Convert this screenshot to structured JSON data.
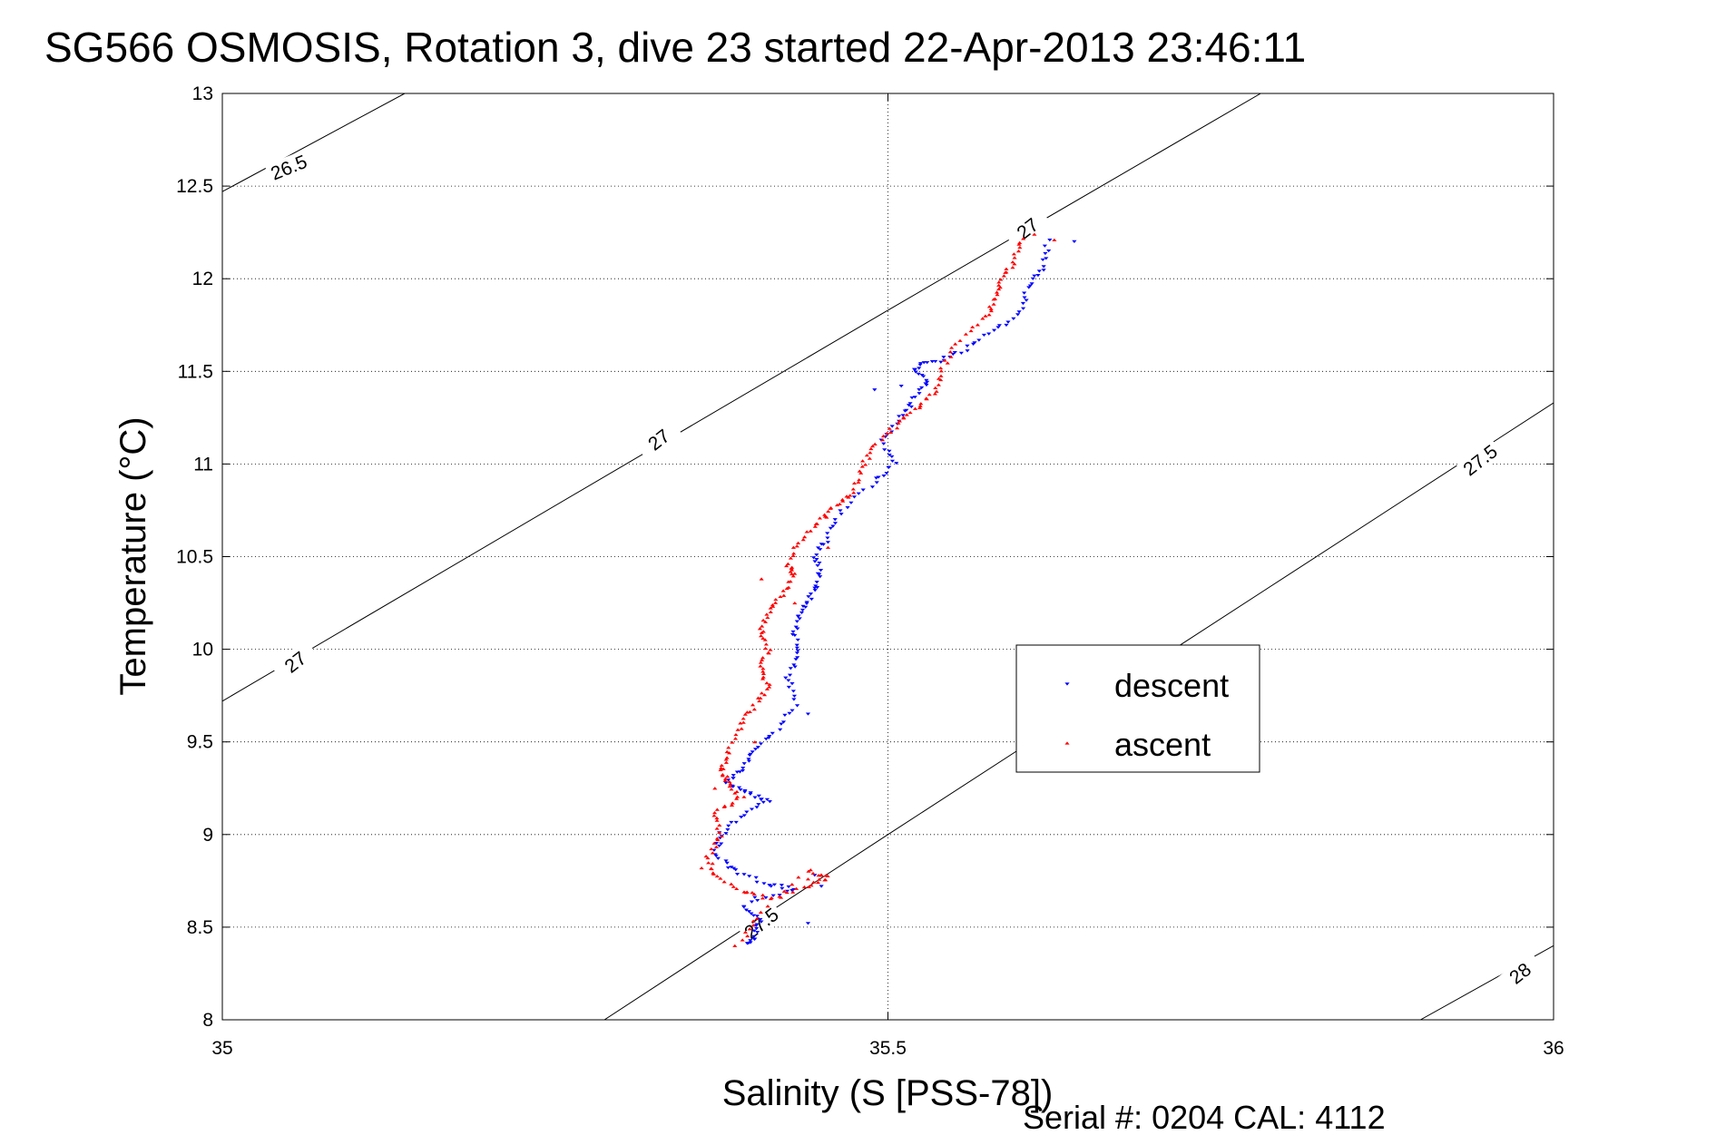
{
  "title": "SG566 OSMOSIS, Rotation 3, dive 23 started 22-Apr-2013 23:46:11",
  "footer": "Serial #: 0204  CAL: 4112",
  "chart_data": {
    "type": "scatter",
    "title": "SG566 OSMOSIS, Rotation 3, dive 23 started 22-Apr-2013 23:46:11",
    "xlabel": "Salinity (S [PSS-78])",
    "ylabel": "Temperature (°C)",
    "xlim": [
      35,
      36
    ],
    "ylim": [
      8,
      13
    ],
    "xticks": [
      35,
      35.5,
      36
    ],
    "xtick_labels": [
      "35",
      "35.5",
      "36"
    ],
    "yticks": [
      8,
      8.5,
      9,
      9.5,
      10,
      10.5,
      11,
      11.5,
      12,
      12.5,
      13
    ],
    "ytick_labels": [
      "8",
      "8.5",
      "9",
      "9.5",
      "10",
      "10.5",
      "11",
      "11.5",
      "12",
      "12.5",
      "13"
    ],
    "grid": true,
    "legend_position": "center-right",
    "isopycnals": [
      {
        "label": "26.5",
        "points": [
          [
            35.0,
            12.47
          ],
          [
            35.137,
            13.0
          ]
        ]
      },
      {
        "label": "27",
        "points": [
          [
            35.0,
            9.72
          ],
          [
            35.5,
            11.83
          ],
          [
            35.78,
            13.0
          ]
        ]
      },
      {
        "label": "27.5",
        "points": [
          [
            35.287,
            8.0
          ],
          [
            35.5,
            9.0
          ],
          [
            36.0,
            11.33
          ]
        ]
      },
      {
        "label": "28",
        "points": [
          [
            35.9,
            8.0
          ],
          [
            36.0,
            8.4
          ]
        ]
      }
    ],
    "isopycnal_labels": [
      {
        "text": "26.5",
        "x": 35.05,
        "y": 12.6,
        "angle": -22
      },
      {
        "text": "27",
        "x": 35.055,
        "y": 9.93,
        "angle": -38
      },
      {
        "text": "27",
        "x": 35.328,
        "y": 11.13,
        "angle": -38
      },
      {
        "text": "27",
        "x": 35.605,
        "y": 12.27,
        "angle": -38
      },
      {
        "text": "27.5",
        "x": 35.405,
        "y": 8.52,
        "angle": -38
      },
      {
        "text": "27.5",
        "x": 35.945,
        "y": 11.02,
        "angle": -38
      },
      {
        "text": "28",
        "x": 35.975,
        "y": 8.25,
        "angle": -38
      }
    ],
    "series": [
      {
        "name": "descent",
        "color": "#0000ff",
        "marker": "triangle-down",
        "path": [
          [
            35.62,
            12.2
          ],
          [
            35.617,
            12.05
          ],
          [
            35.605,
            11.95
          ],
          [
            35.598,
            11.8
          ],
          [
            35.575,
            11.7
          ],
          [
            35.555,
            11.6
          ],
          [
            35.535,
            11.55
          ],
          [
            35.52,
            11.52
          ],
          [
            35.53,
            11.45
          ],
          [
            35.52,
            11.35
          ],
          [
            35.51,
            11.25
          ],
          [
            35.495,
            11.12
          ],
          [
            35.505,
            11.0
          ],
          [
            35.49,
            10.9
          ],
          [
            35.465,
            10.75
          ],
          [
            35.455,
            10.6
          ],
          [
            35.445,
            10.5
          ],
          [
            35.45,
            10.4
          ],
          [
            35.442,
            10.28
          ],
          [
            35.435,
            10.2
          ],
          [
            35.43,
            10.1
          ],
          [
            35.433,
            9.98
          ],
          [
            35.425,
            9.85
          ],
          [
            35.43,
            9.7
          ],
          [
            35.415,
            9.55
          ],
          [
            35.4,
            9.45
          ],
          [
            35.39,
            9.35
          ],
          [
            35.38,
            9.28
          ],
          [
            35.395,
            9.22
          ],
          [
            35.41,
            9.18
          ],
          [
            35.39,
            9.1
          ],
          [
            35.375,
            9.0
          ],
          [
            35.37,
            8.9
          ],
          [
            35.385,
            8.8
          ],
          [
            35.41,
            8.73
          ],
          [
            35.43,
            8.7
          ],
          [
            35.39,
            8.62
          ],
          [
            35.405,
            8.55
          ],
          [
            35.4,
            8.45
          ],
          [
            35.395,
            8.4
          ]
        ],
        "extra": [
          [
            35.64,
            12.2
          ],
          [
            35.49,
            11.4
          ],
          [
            35.51,
            11.42
          ],
          [
            35.445,
            10.33
          ],
          [
            35.44,
            9.65
          ],
          [
            35.45,
            8.72
          ],
          [
            35.445,
            8.78
          ],
          [
            35.44,
            8.52
          ],
          [
            35.38,
            8.82
          ],
          [
            35.4,
            8.66
          ]
        ]
      },
      {
        "name": "ascent",
        "color": "#ff0000",
        "marker": "triangle-up",
        "path": [
          [
            35.6,
            12.22
          ],
          [
            35.595,
            12.1
          ],
          [
            35.585,
            12.0
          ],
          [
            35.58,
            11.9
          ],
          [
            35.575,
            11.8
          ],
          [
            35.55,
            11.65
          ],
          [
            35.54,
            11.5
          ],
          [
            35.535,
            11.38
          ],
          [
            35.52,
            11.3
          ],
          [
            35.505,
            11.2
          ],
          [
            35.49,
            11.1
          ],
          [
            35.48,
            10.98
          ],
          [
            35.475,
            10.85
          ],
          [
            35.46,
            10.78
          ],
          [
            35.45,
            10.7
          ],
          [
            35.435,
            10.6
          ],
          [
            35.425,
            10.47
          ],
          [
            35.43,
            10.4
          ],
          [
            35.42,
            10.3
          ],
          [
            35.41,
            10.2
          ],
          [
            35.405,
            10.1
          ],
          [
            35.41,
            10.0
          ],
          [
            35.405,
            9.9
          ],
          [
            35.41,
            9.8
          ],
          [
            35.4,
            9.7
          ],
          [
            35.39,
            9.6
          ],
          [
            35.38,
            9.45
          ],
          [
            35.375,
            9.35
          ],
          [
            35.38,
            9.28
          ],
          [
            35.39,
            9.2
          ],
          [
            35.37,
            9.12
          ],
          [
            35.375,
            9.0
          ],
          [
            35.365,
            8.88
          ],
          [
            35.37,
            8.78
          ],
          [
            35.39,
            8.7
          ],
          [
            35.41,
            8.65
          ],
          [
            35.44,
            8.72
          ],
          [
            35.455,
            8.77
          ],
          [
            35.44,
            8.8
          ],
          [
            35.4,
            8.55
          ],
          [
            35.39,
            8.42
          ]
        ],
        "extra": [
          [
            35.61,
            12.24
          ],
          [
            35.625,
            12.21
          ],
          [
            35.455,
            10.55
          ],
          [
            35.405,
            10.38
          ],
          [
            35.4,
            9.5
          ],
          [
            35.37,
            9.25
          ],
          [
            35.36,
            8.82
          ],
          [
            35.385,
            8.4
          ],
          [
            35.43,
            10.25
          ],
          [
            35.44,
            8.76
          ]
        ]
      }
    ]
  }
}
